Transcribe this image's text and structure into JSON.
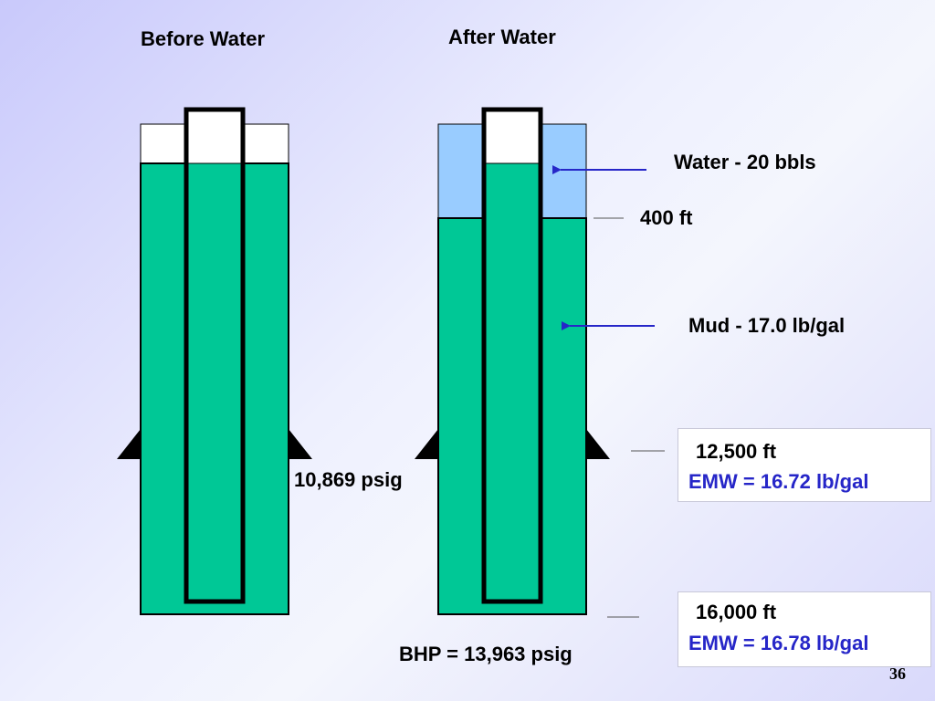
{
  "headings": {
    "before": "Before Water",
    "after": "After Water"
  },
  "labels": {
    "water": "Water  -  20 bbls",
    "depth_400": "400 ft",
    "mud": "Mud - 17.0 lb/gal",
    "shoe_pressure": "10,869 psig",
    "bhp": "BHP = 13,963 psig"
  },
  "emw_boxes": [
    {
      "depth": "12,500 ft",
      "emw": "EMW = 16.72 lb/gal"
    },
    {
      "depth": "16,000 ft",
      "emw": "EMW = 16.78 lb/gal"
    }
  ],
  "slide_number": "36",
  "colors": {
    "mud": "#00c896",
    "water": "#99ccff",
    "pipe_wall": "#000000",
    "arrow": "#2626c8",
    "emw_text": "#2626c8"
  }
}
